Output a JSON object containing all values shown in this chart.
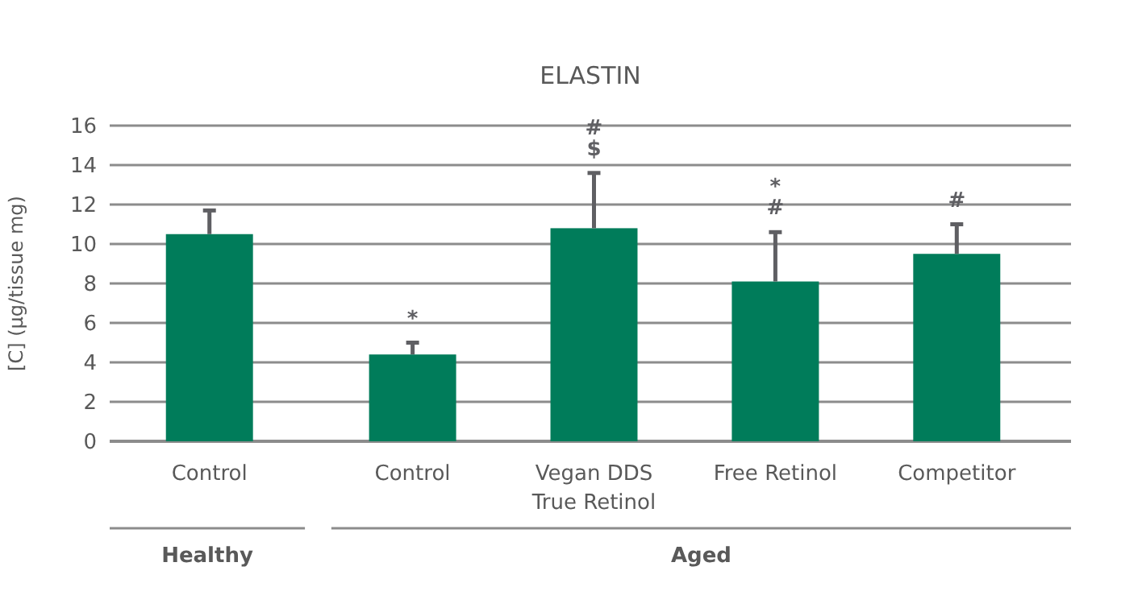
{
  "chart_data": {
    "type": "bar",
    "title": "ELASTIN",
    "ylabel": "[C] (µg/tissue mg)",
    "categories": [
      "Control",
      "Control",
      "Vegan DDS\nTrue Retinol",
      "Free Retinol",
      "Competitor"
    ],
    "values": [
      10.5,
      4.4,
      10.8,
      8.1,
      9.5
    ],
    "color": "#007c5a",
    "errors": [
      [
        10.5,
        11.7
      ],
      [
        4.4,
        5.0
      ],
      [
        10.8,
        13.6
      ],
      [
        8.1,
        10.6
      ],
      [
        9.5,
        11.0
      ]
    ],
    "ylim": [
      0,
      16
    ],
    "yticks": [
      0,
      2,
      4,
      6,
      8,
      10,
      12,
      14,
      16
    ],
    "grid": "y",
    "value_labels": [
      null,
      "*",
      "#\n$",
      "*\n#",
      "#"
    ],
    "annotations": [
      "Healthy",
      "Aged"
    ]
  }
}
